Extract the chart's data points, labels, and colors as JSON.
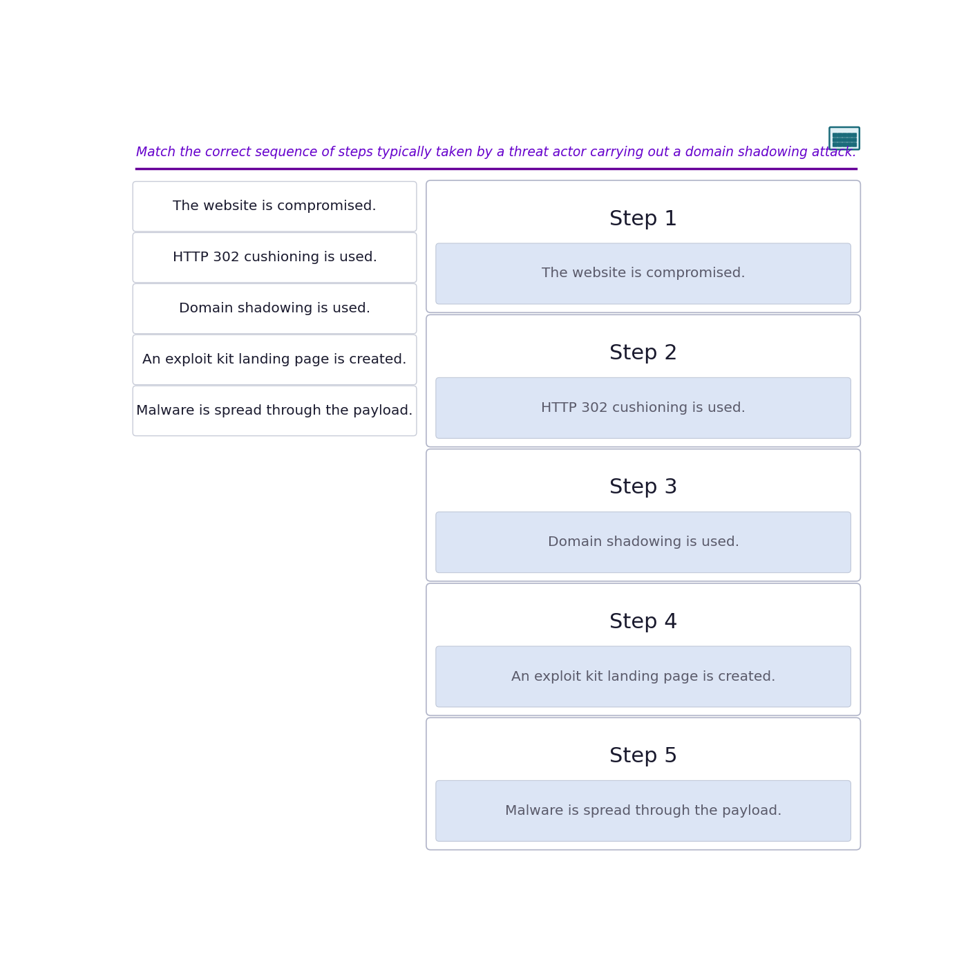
{
  "title": "Match the correct sequence of steps typically taken by a threat actor carrying out a domain shadowing attack.",
  "title_color": "#6600cc",
  "title_fontsize": 13.5,
  "bg_color": "#ffffff",
  "divider_color": "#660099",
  "left_items": [
    "The website is compromised.",
    "HTTP 302 cushioning is used.",
    "Domain shadowing is used.",
    "An exploit kit landing page is created.",
    "Malware is spread through the payload."
  ],
  "right_steps": [
    {
      "label": "Step 1",
      "content": "The website is compromised."
    },
    {
      "label": "Step 2",
      "content": "HTTP 302 cushioning is used."
    },
    {
      "label": "Step 3",
      "content": "Domain shadowing is used."
    },
    {
      "label": "Step 4",
      "content": "An exploit kit landing page is created."
    },
    {
      "label": "Step 5",
      "content": "Malware is spread through the payload."
    }
  ],
  "left_box_border_color": "#c8ccd8",
  "left_box_bg": "#ffffff",
  "left_text_color": "#1a1a2e",
  "right_outer_border_color": "#b0b4c8",
  "right_outer_bg": "#ffffff",
  "right_inner_bg": "#dce5f5",
  "right_inner_border_color": "#c0c8d8",
  "step_label_color": "#1a1a2e",
  "step_content_color": "#5a5a6a",
  "icon_color": "#1a6b7a",
  "icon_bg": "#e0f0f5"
}
